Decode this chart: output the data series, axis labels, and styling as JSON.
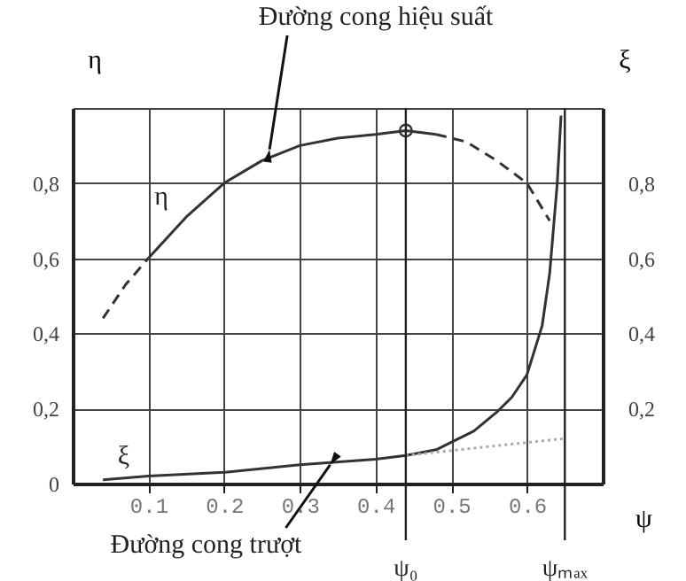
{
  "chart_data": {
    "type": "line",
    "xlabel": "ψ",
    "ylabel": "η",
    "y2label": "ξ",
    "xlim": [
      0,
      0.7
    ],
    "xticks": [
      0.1,
      0.2,
      0.3,
      0.4,
      0.5,
      0.6
    ],
    "ylim": [
      0,
      1
    ],
    "yticks": [
      {
        "value": 0,
        "label": "0"
      },
      {
        "value": 0.2,
        "label": "0,2"
      },
      {
        "value": 0.4,
        "label": "0,4"
      },
      {
        "value": 0.6,
        "label": "0,6"
      },
      {
        "value": 0.8,
        "label": "0,8"
      },
      {
        "value": 1,
        "label": null
      }
    ],
    "y2lim": [
      0,
      1
    ],
    "y2ticks": [
      {
        "value": 0.2,
        "label": "0,2"
      },
      {
        "value": 0.4,
        "label": "0,4"
      },
      {
        "value": 0.6,
        "label": "0,6"
      },
      {
        "value": 0.8,
        "label": "0,8"
      }
    ],
    "grid": true,
    "series": [
      {
        "name": "η",
        "color": "#333333",
        "line_style": "solid",
        "x": [
          0.1,
          0.15,
          0.2,
          0.25,
          0.3,
          0.35,
          0.4,
          0.44,
          0.48
        ],
        "values": [
          0.6,
          0.71,
          0.8,
          0.86,
          0.9,
          0.92,
          0.93,
          0.94,
          0.93
        ]
      },
      {
        "color": "#333333",
        "line_style": "dashed",
        "x": [
          0.04,
          0.07,
          0.1
        ],
        "values": [
          0.44,
          0.53,
          0.6
        ]
      },
      {
        "color": "#333333",
        "line_style": "dashed",
        "x": [
          0.48,
          0.52,
          0.56,
          0.6,
          0.63
        ],
        "values": [
          0.93,
          0.91,
          0.86,
          0.8,
          0.7
        ]
      },
      {
        "type": "scatter",
        "marker": "circle",
        "color": "#333333",
        "x": [
          0.44
        ],
        "values": [
          0.94
        ]
      },
      {
        "name": "ξ",
        "axis": "y2",
        "color": "#333333",
        "line_style": "solid",
        "x": [
          0.04,
          0.1,
          0.2,
          0.3,
          0.4,
          0.44,
          0.48,
          0.5,
          0.53,
          0.56,
          0.58,
          0.6,
          0.62,
          0.63,
          0.64,
          0.645
        ],
        "values": [
          0.01,
          0.02,
          0.03,
          0.05,
          0.065,
          0.075,
          0.09,
          0.11,
          0.14,
          0.19,
          0.23,
          0.29,
          0.42,
          0.56,
          0.8,
          0.98
        ]
      },
      {
        "axis": "y2",
        "color": "#aaaaaa",
        "line_style": "dotted",
        "x": [
          0.44,
          0.65
        ],
        "values": [
          0.075,
          0.12
        ]
      }
    ],
    "ref_lines": [
      {
        "axis": "x",
        "value": 0.44,
        "label": "ψ₀"
      },
      {
        "axis": "x",
        "value": 0.65,
        "label": "ψₘₐₓ"
      }
    ],
    "annotations": [
      {
        "text": "Đường cong hiệu suất",
        "x": 0.26,
        "y": 0.89
      },
      {
        "text": "Đường cong trượt",
        "x": 0.34,
        "y": 0.05
      }
    ]
  }
}
